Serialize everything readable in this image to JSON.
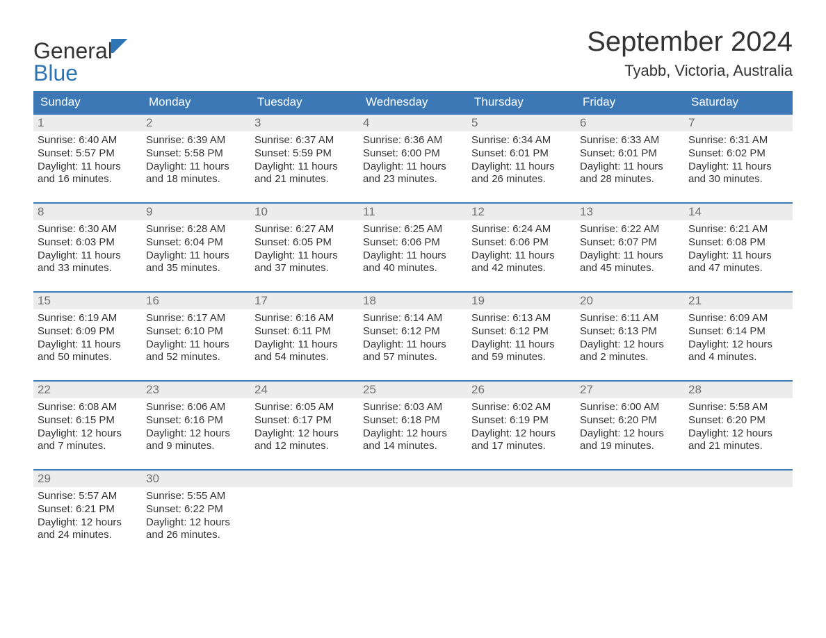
{
  "brand": {
    "word1": "General",
    "word2": "Blue",
    "color_accent": "#2e75b6"
  },
  "header": {
    "month_title": "September 2024",
    "location": "Tyabb, Victoria, Australia"
  },
  "calendar": {
    "day_headers": [
      "Sunday",
      "Monday",
      "Tuesday",
      "Wednesday",
      "Thursday",
      "Friday",
      "Saturday"
    ],
    "header_bg": "#3b78b5",
    "header_fg": "#ffffff",
    "daynum_bg": "#ececec",
    "daynum_fg": "#6f6f6f",
    "row_border_color": "#3b78b5",
    "weeks": [
      [
        {
          "n": "1",
          "sunrise": "Sunrise: 6:40 AM",
          "sunset": "Sunset: 5:57 PM",
          "daylight1": "Daylight: 11 hours",
          "daylight2": "and 16 minutes."
        },
        {
          "n": "2",
          "sunrise": "Sunrise: 6:39 AM",
          "sunset": "Sunset: 5:58 PM",
          "daylight1": "Daylight: 11 hours",
          "daylight2": "and 18 minutes."
        },
        {
          "n": "3",
          "sunrise": "Sunrise: 6:37 AM",
          "sunset": "Sunset: 5:59 PM",
          "daylight1": "Daylight: 11 hours",
          "daylight2": "and 21 minutes."
        },
        {
          "n": "4",
          "sunrise": "Sunrise: 6:36 AM",
          "sunset": "Sunset: 6:00 PM",
          "daylight1": "Daylight: 11 hours",
          "daylight2": "and 23 minutes."
        },
        {
          "n": "5",
          "sunrise": "Sunrise: 6:34 AM",
          "sunset": "Sunset: 6:01 PM",
          "daylight1": "Daylight: 11 hours",
          "daylight2": "and 26 minutes."
        },
        {
          "n": "6",
          "sunrise": "Sunrise: 6:33 AM",
          "sunset": "Sunset: 6:01 PM",
          "daylight1": "Daylight: 11 hours",
          "daylight2": "and 28 minutes."
        },
        {
          "n": "7",
          "sunrise": "Sunrise: 6:31 AM",
          "sunset": "Sunset: 6:02 PM",
          "daylight1": "Daylight: 11 hours",
          "daylight2": "and 30 minutes."
        }
      ],
      [
        {
          "n": "8",
          "sunrise": "Sunrise: 6:30 AM",
          "sunset": "Sunset: 6:03 PM",
          "daylight1": "Daylight: 11 hours",
          "daylight2": "and 33 minutes."
        },
        {
          "n": "9",
          "sunrise": "Sunrise: 6:28 AM",
          "sunset": "Sunset: 6:04 PM",
          "daylight1": "Daylight: 11 hours",
          "daylight2": "and 35 minutes."
        },
        {
          "n": "10",
          "sunrise": "Sunrise: 6:27 AM",
          "sunset": "Sunset: 6:05 PM",
          "daylight1": "Daylight: 11 hours",
          "daylight2": "and 37 minutes."
        },
        {
          "n": "11",
          "sunrise": "Sunrise: 6:25 AM",
          "sunset": "Sunset: 6:06 PM",
          "daylight1": "Daylight: 11 hours",
          "daylight2": "and 40 minutes."
        },
        {
          "n": "12",
          "sunrise": "Sunrise: 6:24 AM",
          "sunset": "Sunset: 6:06 PM",
          "daylight1": "Daylight: 11 hours",
          "daylight2": "and 42 minutes."
        },
        {
          "n": "13",
          "sunrise": "Sunrise: 6:22 AM",
          "sunset": "Sunset: 6:07 PM",
          "daylight1": "Daylight: 11 hours",
          "daylight2": "and 45 minutes."
        },
        {
          "n": "14",
          "sunrise": "Sunrise: 6:21 AM",
          "sunset": "Sunset: 6:08 PM",
          "daylight1": "Daylight: 11 hours",
          "daylight2": "and 47 minutes."
        }
      ],
      [
        {
          "n": "15",
          "sunrise": "Sunrise: 6:19 AM",
          "sunset": "Sunset: 6:09 PM",
          "daylight1": "Daylight: 11 hours",
          "daylight2": "and 50 minutes."
        },
        {
          "n": "16",
          "sunrise": "Sunrise: 6:17 AM",
          "sunset": "Sunset: 6:10 PM",
          "daylight1": "Daylight: 11 hours",
          "daylight2": "and 52 minutes."
        },
        {
          "n": "17",
          "sunrise": "Sunrise: 6:16 AM",
          "sunset": "Sunset: 6:11 PM",
          "daylight1": "Daylight: 11 hours",
          "daylight2": "and 54 minutes."
        },
        {
          "n": "18",
          "sunrise": "Sunrise: 6:14 AM",
          "sunset": "Sunset: 6:12 PM",
          "daylight1": "Daylight: 11 hours",
          "daylight2": "and 57 minutes."
        },
        {
          "n": "19",
          "sunrise": "Sunrise: 6:13 AM",
          "sunset": "Sunset: 6:12 PM",
          "daylight1": "Daylight: 11 hours",
          "daylight2": "and 59 minutes."
        },
        {
          "n": "20",
          "sunrise": "Sunrise: 6:11 AM",
          "sunset": "Sunset: 6:13 PM",
          "daylight1": "Daylight: 12 hours",
          "daylight2": "and 2 minutes."
        },
        {
          "n": "21",
          "sunrise": "Sunrise: 6:09 AM",
          "sunset": "Sunset: 6:14 PM",
          "daylight1": "Daylight: 12 hours",
          "daylight2": "and 4 minutes."
        }
      ],
      [
        {
          "n": "22",
          "sunrise": "Sunrise: 6:08 AM",
          "sunset": "Sunset: 6:15 PM",
          "daylight1": "Daylight: 12 hours",
          "daylight2": "and 7 minutes."
        },
        {
          "n": "23",
          "sunrise": "Sunrise: 6:06 AM",
          "sunset": "Sunset: 6:16 PM",
          "daylight1": "Daylight: 12 hours",
          "daylight2": "and 9 minutes."
        },
        {
          "n": "24",
          "sunrise": "Sunrise: 6:05 AM",
          "sunset": "Sunset: 6:17 PM",
          "daylight1": "Daylight: 12 hours",
          "daylight2": "and 12 minutes."
        },
        {
          "n": "25",
          "sunrise": "Sunrise: 6:03 AM",
          "sunset": "Sunset: 6:18 PM",
          "daylight1": "Daylight: 12 hours",
          "daylight2": "and 14 minutes."
        },
        {
          "n": "26",
          "sunrise": "Sunrise: 6:02 AM",
          "sunset": "Sunset: 6:19 PM",
          "daylight1": "Daylight: 12 hours",
          "daylight2": "and 17 minutes."
        },
        {
          "n": "27",
          "sunrise": "Sunrise: 6:00 AM",
          "sunset": "Sunset: 6:20 PM",
          "daylight1": "Daylight: 12 hours",
          "daylight2": "and 19 minutes."
        },
        {
          "n": "28",
          "sunrise": "Sunrise: 5:58 AM",
          "sunset": "Sunset: 6:20 PM",
          "daylight1": "Daylight: 12 hours",
          "daylight2": "and 21 minutes."
        }
      ],
      [
        {
          "n": "29",
          "sunrise": "Sunrise: 5:57 AM",
          "sunset": "Sunset: 6:21 PM",
          "daylight1": "Daylight: 12 hours",
          "daylight2": "and 24 minutes."
        },
        {
          "n": "30",
          "sunrise": "Sunrise: 5:55 AM",
          "sunset": "Sunset: 6:22 PM",
          "daylight1": "Daylight: 12 hours",
          "daylight2": "and 26 minutes."
        },
        {
          "empty": true
        },
        {
          "empty": true
        },
        {
          "empty": true
        },
        {
          "empty": true
        },
        {
          "empty": true
        }
      ]
    ]
  }
}
